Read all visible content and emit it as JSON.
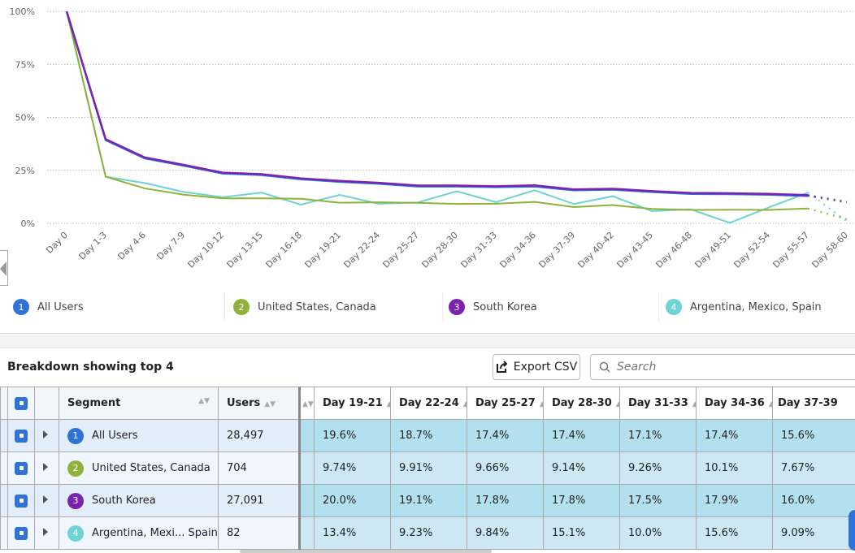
{
  "chart_data": {
    "type": "line",
    "ylim": [
      0,
      100
    ],
    "yticks": [
      "0%",
      "25%",
      "50%",
      "75%",
      "100%"
    ],
    "grid": true,
    "categories": [
      "Day 0",
      "Day 1-3",
      "Day 4-6",
      "Day 7-9",
      "Day 10-12",
      "Day 13-15",
      "Day 16-18",
      "Day 19-21",
      "Day 22-24",
      "Day 25-27",
      "Day 28-30",
      "Day 31-33",
      "Day 34-36",
      "Day 37-39",
      "Day 40-42",
      "Day 43-45",
      "Day 46-48",
      "Day 49-51",
      "Day 52-54",
      "Day 55-57",
      "Day 58-60"
    ],
    "incomplete_last_point": true,
    "series": [
      {
        "name": "All Users",
        "color": "#2f73d9",
        "values": [
          100,
          39.3,
          30.7,
          27.2,
          23.5,
          22.8,
          20.8,
          19.6,
          18.7,
          17.4,
          17.4,
          17.1,
          17.4,
          15.6,
          15.9,
          14.8,
          13.9,
          13.8,
          13.5,
          12.9,
          9.8
        ]
      },
      {
        "name": "United States, Canada",
        "color": "#8fb23a",
        "values": [
          100,
          22,
          16.5,
          13.5,
          11.8,
          11.8,
          11.6,
          9.74,
          9.91,
          9.66,
          9.14,
          9.26,
          10.1,
          7.67,
          8.6,
          6.8,
          6.3,
          6.4,
          6.3,
          7.0,
          2.0
        ]
      },
      {
        "name": "South Korea",
        "color": "#7b22b0",
        "values": [
          100,
          39.7,
          31.1,
          27.6,
          23.9,
          23.2,
          21.2,
          20.0,
          19.1,
          17.8,
          17.8,
          17.5,
          17.9,
          16.0,
          16.3,
          15.2,
          14.3,
          14.2,
          13.9,
          13.3,
          10.2
        ]
      },
      {
        "name": "Argentina, Mexico, Spain",
        "color": "#6dd3d3",
        "values": [
          100,
          22,
          19,
          14.8,
          12.3,
          14.5,
          8.8,
          13.4,
          9.23,
          9.84,
          15.1,
          10.0,
          15.6,
          9.09,
          12.8,
          5.8,
          6.6,
          0.2,
          7.5,
          14.5,
          1.0
        ]
      }
    ]
  },
  "legend": [
    {
      "num": "1",
      "label": "All Users",
      "color": "#2f73d9"
    },
    {
      "num": "2",
      "label": "United States, Canada",
      "color": "#8fb23a"
    },
    {
      "num": "3",
      "label": "South Korea",
      "color": "#7b22b0"
    },
    {
      "num": "4",
      "label": "Argentina, Mexico, Spain",
      "color": "#6dd3d3"
    }
  ],
  "breakdown": {
    "title": "Breakdown showing top 4",
    "export_label": "Export CSV",
    "search_placeholder": "Search",
    "headers": {
      "segment": "Segment",
      "users": "Users",
      "days": [
        "Day 19-21",
        "Day 22-24",
        "Day 25-27",
        "Day 28-30",
        "Day 31-33",
        "Day 34-36",
        "Day 37-39"
      ]
    },
    "rows": [
      {
        "num": "1",
        "color": "#2f73d9",
        "segment": "All Users",
        "users": "28,497",
        "values": [
          "19.6%",
          "18.7%",
          "17.4%",
          "17.4%",
          "17.1%",
          "17.4%",
          "15.6%"
        ]
      },
      {
        "num": "2",
        "color": "#8fb23a",
        "segment": "United States, Canada",
        "users": "704",
        "values": [
          "9.74%",
          "9.91%",
          "9.66%",
          "9.14%",
          "9.26%",
          "10.1%",
          "7.67%"
        ]
      },
      {
        "num": "3",
        "color": "#7b22b0",
        "segment": "South Korea",
        "users": "27,091",
        "values": [
          "20.0%",
          "19.1%",
          "17.8%",
          "17.8%",
          "17.5%",
          "17.9%",
          "16.0%"
        ]
      },
      {
        "num": "4",
        "color": "#6dd3d3",
        "segment": "Argentina, Mexi...  Spain",
        "users": "82",
        "values": [
          "13.4%",
          "9.23%",
          "9.84%",
          "15.1%",
          "10.0%",
          "15.6%",
          "9.09%"
        ]
      }
    ]
  }
}
